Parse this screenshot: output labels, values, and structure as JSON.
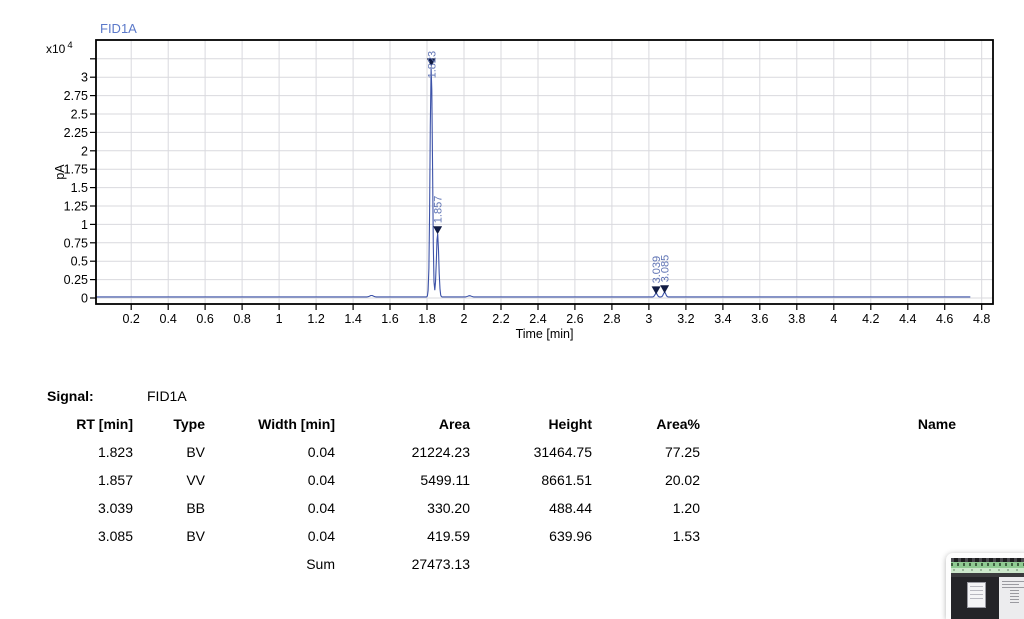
{
  "chart_data": {
    "type": "line",
    "title": "FID1A",
    "xlabel": "Time [min]",
    "ylabel": "pA",
    "y_scale_label": "x10",
    "y_scale_exponent": "4",
    "xlim": [
      0,
      4.86
    ],
    "ylim_e4": [
      -0.08,
      3.5
    ],
    "x_tick_start": 0.2,
    "x_tick_step": 0.2,
    "x_tick_end": 4.8,
    "y_tick_step": 0.25,
    "y_tick_max": 3.25,
    "y_label_max": 3,
    "grid": true,
    "legend_position": "none",
    "baseline_e4": 0.015,
    "peaks": [
      {
        "rt_min": 1.823,
        "height_e4": 3.1465,
        "label": "1.823"
      },
      {
        "rt_min": 1.857,
        "height_e4": 0.8662,
        "label": "1.857"
      },
      {
        "rt_min": 3.039,
        "height_e4": 0.0488,
        "label": "3.039"
      },
      {
        "rt_min": 3.085,
        "height_e4": 0.064,
        "label": "3.085"
      }
    ],
    "baseline_bumps": [
      {
        "t": 1.5,
        "h_e4": 0.02
      },
      {
        "t": 2.03,
        "h_e4": 0.016
      }
    ],
    "colors": {
      "line": "#3c52a8",
      "marker": "#111c44",
      "peak_label": "#6175b5",
      "title": "#5b79c9",
      "grid": "#d9d9de",
      "frame": "#000000",
      "axis_text": "#000000"
    }
  },
  "table": {
    "signal_label": "Signal:",
    "signal_value": "FID1A",
    "columns": [
      "RT [min]",
      "Type",
      "Width [min]",
      "Area",
      "Height",
      "Area%",
      "Name"
    ],
    "rows": [
      [
        "1.823",
        "BV",
        "0.04",
        "21224.23",
        "31464.75",
        "77.25",
        ""
      ],
      [
        "1.857",
        "VV",
        "0.04",
        "5499.11",
        "8661.51",
        "20.02",
        ""
      ],
      [
        "3.039",
        "BB",
        "0.04",
        "330.20",
        "488.44",
        "1.20",
        ""
      ],
      [
        "3.085",
        "BV",
        "0.04",
        "419.59",
        "639.96",
        "1.53",
        ""
      ]
    ],
    "sum_label": "Sum",
    "sum_value": "27473.13"
  }
}
